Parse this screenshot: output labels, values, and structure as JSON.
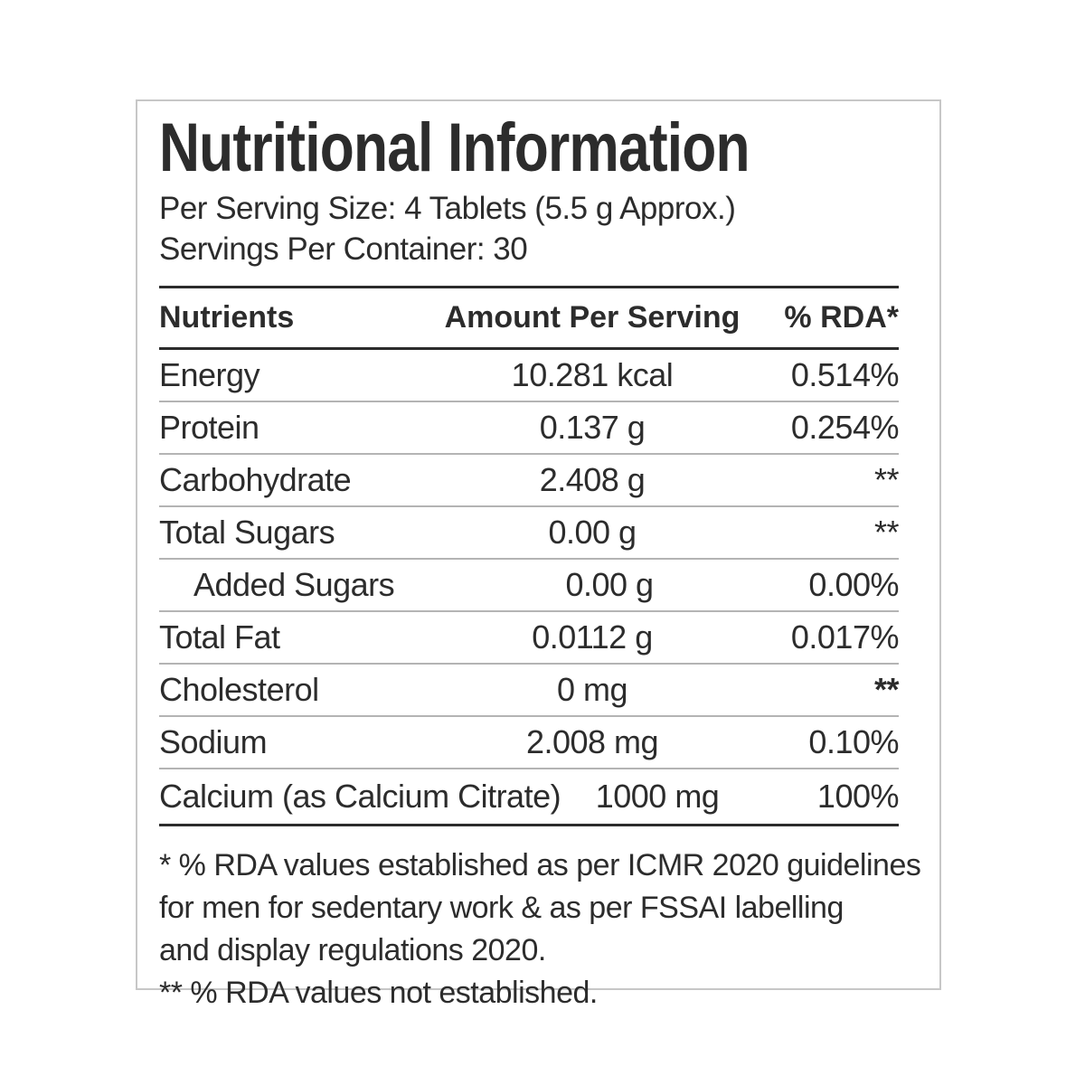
{
  "label": {
    "title": "Nutritional Information",
    "serving_size_line": "Per Serving Size: 4 Tablets (5.5 g Approx.)",
    "servings_per_container_line": "Servings Per Container: 30"
  },
  "table": {
    "headers": {
      "nutrient": "Nutrients",
      "amount": "Amount Per Serving",
      "rda": "% RDA*"
    },
    "rows": [
      {
        "nutrient": "Energy",
        "amount": "10.281 kcal",
        "rda": "0.514%"
      },
      {
        "nutrient": "Protein",
        "amount": "0.137 g",
        "rda": "0.254%"
      },
      {
        "nutrient": "Carbohydrate",
        "amount": "2.408 g",
        "rda": "**"
      },
      {
        "nutrient": "Total Sugars",
        "amount": "0.00 g",
        "rda": "**"
      },
      {
        "nutrient": "Added Sugars",
        "amount": "0.00 g",
        "rda": "0.00%",
        "indent": true
      },
      {
        "nutrient": "Total Fat",
        "amount": "0.0112 g",
        "rda": "0.017%"
      },
      {
        "nutrient": "Cholesterol",
        "amount": "0 mg",
        "rda": "**",
        "rda_bold": true
      },
      {
        "nutrient": "Sodium",
        "amount": "2.008 mg",
        "rda": "0.10%"
      },
      {
        "nutrient": "Calcium (as Calcium Citrate)",
        "amount": "1000 mg",
        "rda": "100%"
      }
    ]
  },
  "footnotes": {
    "lines": [
      "* % RDA values established as per ICMR 2020 guidelines",
      "for men for sedentary work & as per FSSAI labelling",
      "and display regulations 2020.",
      "** % RDA values not established."
    ]
  },
  "colors": {
    "text": "#2c2c2c",
    "rule_dark": "#2c2c2c",
    "rule_light": "#b4b4b4",
    "box_border": "#c7c7c7",
    "background": "#ffffff"
  }
}
